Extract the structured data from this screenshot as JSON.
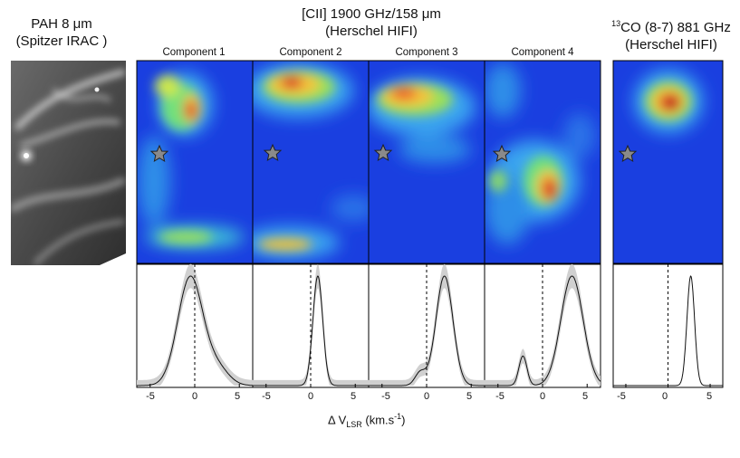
{
  "headers": {
    "pah_line1": "PAH 8 μm",
    "pah_line2": "(Spitzer IRAC )",
    "cii_line1": "[CII] 1900 GHz/158 μm",
    "cii_line2": "(Herschel HIFI)",
    "co_sup": "13",
    "co_line1": "CO (8-7) 881 GHz",
    "co_line2": "(Herschel HIFI)"
  },
  "components": [
    "Component 1",
    "Component 2",
    "Component 3",
    "Component 4"
  ],
  "xaxis": {
    "label_prefix": "Δ V",
    "label_sub": "LSR",
    "label_unit": " (km.s",
    "label_exp": "-1",
    "label_end": ")",
    "ticks": [
      "-5",
      "0",
      "5"
    ]
  },
  "colors": {
    "accent": "#d0d0d0",
    "map_bg": "#1a3fe0"
  },
  "chart_data": {
    "type": "line",
    "xlim": [
      -6.5,
      6.5
    ],
    "xlabel": "Δ V_LSR (km.s^-1)",
    "series": [
      {
        "name": "Component 1",
        "peaks": [
          {
            "center": -0.5,
            "width": 1.4,
            "amp": 1.0
          },
          {
            "center": 2.5,
            "width": 1.3,
            "amp": 0.16
          }
        ]
      },
      {
        "name": "Component 2",
        "peaks": [
          {
            "center": 0.8,
            "width": 0.55,
            "amp": 1.0
          }
        ]
      },
      {
        "name": "Component 3",
        "peaks": [
          {
            "center": 2.0,
            "width": 0.95,
            "amp": 1.0
          },
          {
            "center": -0.7,
            "width": 0.6,
            "amp": 0.12
          }
        ]
      },
      {
        "name": "Component 4",
        "peaks": [
          {
            "center": 3.3,
            "width": 1.25,
            "amp": 1.0
          },
          {
            "center": -2.2,
            "width": 0.45,
            "amp": 0.27
          }
        ]
      },
      {
        "name": "13CO (8-7)",
        "peaks": [
          {
            "center": 2.7,
            "width": 0.45,
            "amp": 1.0
          }
        ]
      }
    ]
  }
}
